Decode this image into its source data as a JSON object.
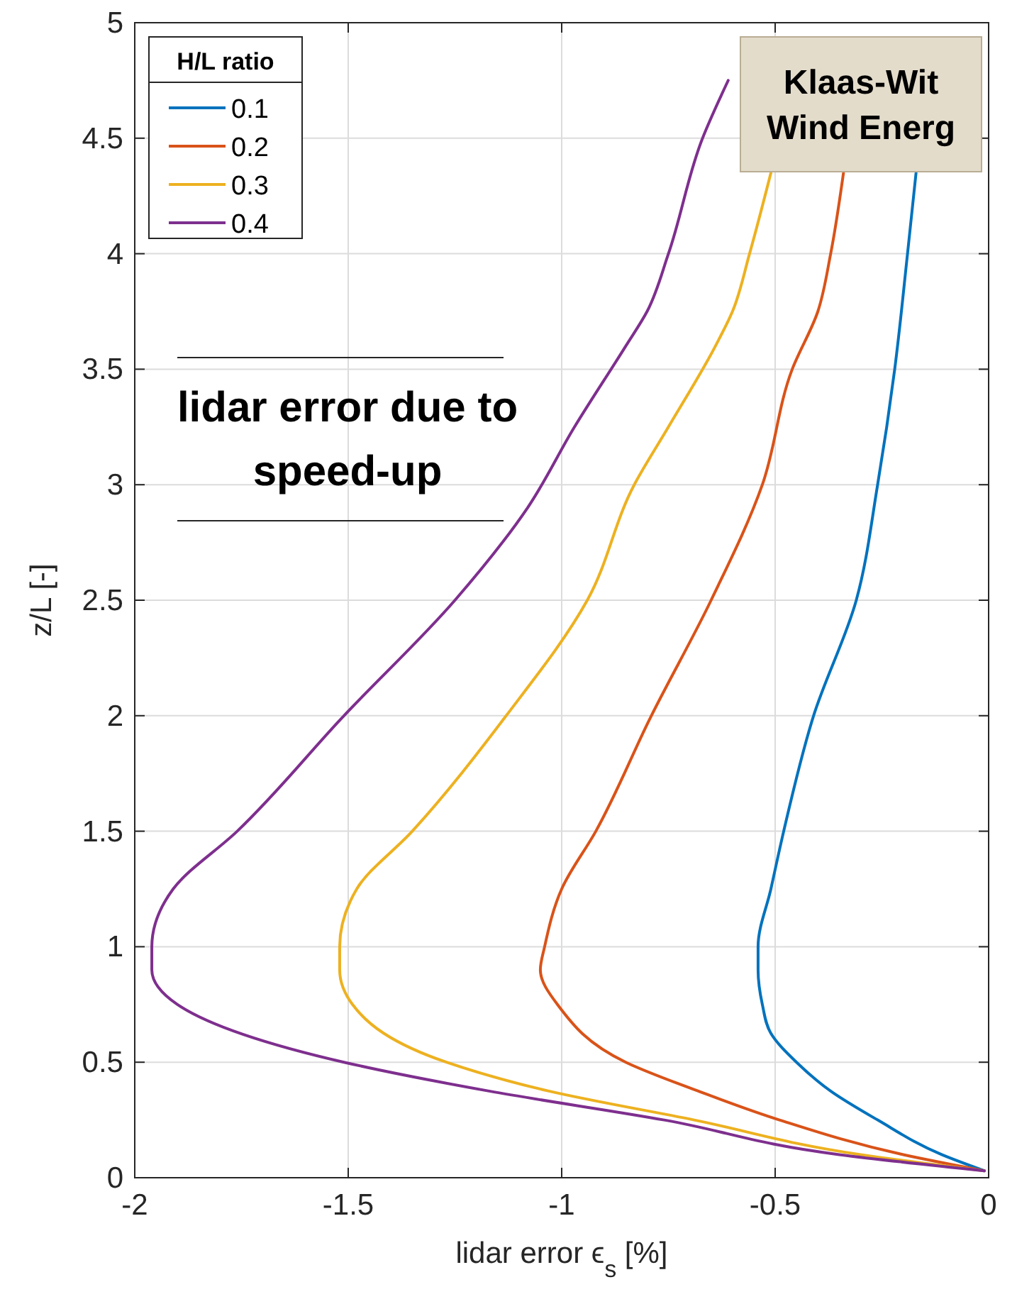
{
  "chart_data": {
    "type": "line",
    "xlabel": "lidar error ϵ$_{s}$ [%]",
    "ylabel": "z/L [-]",
    "legend_title": "H/L ratio",
    "legend": "top left",
    "grid": true,
    "line_style": "solid",
    "xlim": [
      -2,
      0
    ],
    "xticks": [
      -2,
      -1.5,
      -1,
      -0.5,
      0
    ],
    "ylim": [
      0,
      5
    ],
    "yticks": [
      0,
      0.5,
      1,
      1.5,
      2,
      2.5,
      3,
      3.5,
      4,
      4.5,
      5
    ],
    "annotations": [
      "lidar error due to speed-up",
      "Klaas-Wit Wind Energ"
    ],
    "series": [
      {
        "name": "0.1",
        "color": "#0072bd",
        "x": [
          -0.01,
          -0.11,
          -0.26,
          -0.37,
          -0.45,
          -0.51,
          -0.53,
          -0.54,
          -0.54,
          -0.51,
          -0.48,
          -0.41,
          -0.31,
          -0.26,
          -0.22,
          -0.19,
          -0.17
        ],
        "values": [
          0.03,
          0.1,
          0.25,
          0.375,
          0.5,
          0.625,
          0.75,
          0.9,
          1,
          1.25,
          1.5,
          2,
          2.5,
          3,
          3.5,
          4,
          4.35
        ]
      },
      {
        "name": "0.2",
        "color": "#d95319",
        "x": [
          -0.01,
          -0.2,
          -0.49,
          -0.68,
          -0.85,
          -1.01,
          -1.05,
          -1.04,
          -1,
          -0.92,
          -0.79,
          -0.65,
          -0.53,
          -0.46,
          -0.4,
          -0.37,
          -0.34
        ],
        "values": [
          0.03,
          0.1,
          0.25,
          0.375,
          0.5,
          0.75,
          0.9,
          1,
          1.25,
          1.5,
          2,
          2.5,
          3,
          3.5,
          3.75,
          4,
          4.35
        ]
      },
      {
        "name": "0.3",
        "color": "#edb120",
        "x": [
          -0.01,
          -0.3,
          -0.69,
          -1.03,
          -1.27,
          -1.49,
          -1.52,
          -1.52,
          -1.48,
          -1.35,
          -1.13,
          -0.94,
          -0.83,
          -0.75,
          -0.64,
          -0.6,
          -0.56,
          -0.51
        ],
        "values": [
          0.03,
          0.1,
          0.25,
          0.375,
          0.5,
          0.75,
          0.9,
          1,
          1.25,
          1.5,
          2,
          2.5,
          3,
          3.25,
          3.6,
          3.75,
          4,
          4.35
        ]
      },
      {
        "name": "0.4",
        "color": "#7e2f8e",
        "x": [
          -0.01,
          -0.35,
          -0.76,
          -1.17,
          -1.51,
          -1.9,
          -1.96,
          -1.96,
          -1.91,
          -1.76,
          -1.51,
          -1.25,
          -1.08,
          -0.97,
          -0.85,
          -0.8,
          -0.75,
          -0.67,
          -0.61
        ],
        "values": [
          0.03,
          0.1,
          0.25,
          0.375,
          0.5,
          0.75,
          0.9,
          1,
          1.25,
          1.5,
          2,
          2.5,
          2.9,
          3.25,
          3.6,
          3.75,
          4,
          4.5,
          4.75
        ]
      }
    ]
  }
}
